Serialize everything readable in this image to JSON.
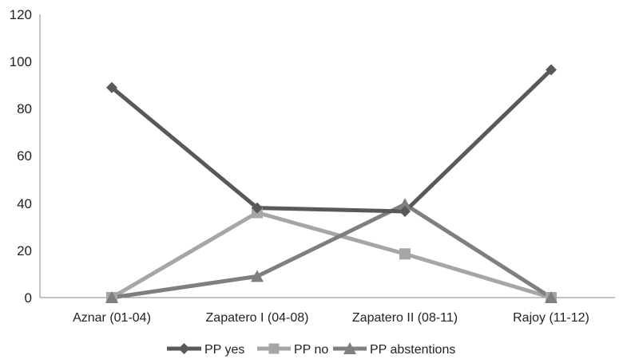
{
  "chart_data": {
    "type": "line",
    "categories": [
      "Aznar (01-04)",
      "Zapatero I (04-08)",
      "Zapatero II (08-11)",
      "Rajoy (11-12)"
    ],
    "series": [
      {
        "name": "PP yes",
        "values": [
          89,
          38,
          36.5,
          96.5
        ],
        "marker": "diamond",
        "color": "#595959"
      },
      {
        "name": "PP no",
        "values": [
          0,
          36,
          18.5,
          0
        ],
        "marker": "square",
        "color": "#a6a6a6"
      },
      {
        "name": "PP abstentions",
        "values": [
          0,
          9,
          39.5,
          0
        ],
        "marker": "triangle",
        "color": "#7f7f7f"
      }
    ],
    "y_ticks": [
      "0",
      "20",
      "40",
      "60",
      "80",
      "100",
      "120"
    ],
    "ylim": [
      0,
      120
    ],
    "grid": false,
    "legend_position": "bottom"
  }
}
